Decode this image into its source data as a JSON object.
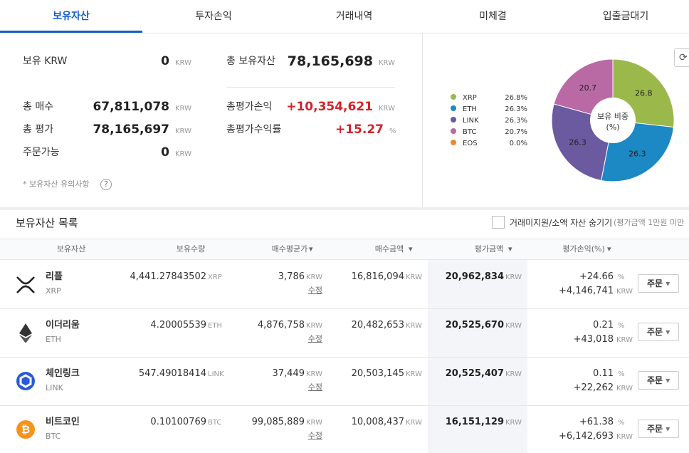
{
  "tabs": [
    "보유자산",
    "투자손익",
    "거래내역",
    "미체결",
    "입출금대기"
  ],
  "currency": "KRW",
  "percent": "%",
  "summary": {
    "krw": {
      "label": "보유 KRW",
      "value": "0"
    },
    "total_assets": {
      "label": "총 보유자산",
      "value": "78,165,698"
    },
    "total_buy": {
      "label": "총 매수",
      "value": "67,811,078"
    },
    "total_pl": {
      "label": "총평가손익",
      "value": "+10,354,621"
    },
    "total_eval": {
      "label": "총 평가",
      "value": "78,165,697"
    },
    "total_rate": {
      "label": "총평가수익률",
      "value": "+15.27"
    },
    "orderable": {
      "label": "주문가능",
      "value": "0"
    },
    "note": "* 보유자산 유의사항",
    "help": "?"
  },
  "chart_data": {
    "type": "pie",
    "title": "보유 비중",
    "subtitle": "(%)",
    "categories": [
      "XRP",
      "ETH",
      "LINK",
      "BTC",
      "EOS"
    ],
    "values": [
      26.8,
      26.3,
      26.3,
      20.7,
      0.0
    ],
    "value_labels": [
      "26.8%",
      "26.3%",
      "26.3%",
      "20.7%",
      "0.0%"
    ],
    "colors": [
      "#9bb84a",
      "#1c89c4",
      "#6b5aa0",
      "#b96aa5",
      "#ec8a2d"
    ],
    "legend": "left"
  },
  "holdings": {
    "title": "보유자산 목록",
    "hide_label": "거래미지원/소액 자산 숨기기",
    "hide_note": "(평가금액 1만원 미만",
    "columns": [
      "보유자산",
      "보유수량",
      "매수평균가",
      "매수금액",
      "평가금액",
      "평가손익(%)"
    ],
    "edit": "수정",
    "order": "주문",
    "rows": [
      {
        "name": "리플",
        "symbol": "XRP",
        "qty": "4,441.27843502",
        "avg_price": "3,786",
        "buy_amount": "16,816,094",
        "eval_amount": "20,962,834",
        "rate": "+24.66",
        "pl": "+4,146,741"
      },
      {
        "name": "이더리움",
        "symbol": "ETH",
        "qty": "4.20005539",
        "avg_price": "4,876,758",
        "buy_amount": "20,482,653",
        "eval_amount": "20,525,670",
        "rate": "0.21",
        "pl": "+43,018"
      },
      {
        "name": "체인링크",
        "symbol": "LINK",
        "qty": "547.49018414",
        "avg_price": "37,449",
        "buy_amount": "20,503,145",
        "eval_amount": "20,525,407",
        "rate": "0.11",
        "pl": "+22,262"
      },
      {
        "name": "비트코인",
        "symbol": "BTC",
        "qty": "0.10100769",
        "avg_price": "99,085,889",
        "buy_amount": "10,008,437",
        "eval_amount": "16,151,129",
        "rate": "+61.38",
        "pl": "+6,142,693"
      }
    ]
  }
}
